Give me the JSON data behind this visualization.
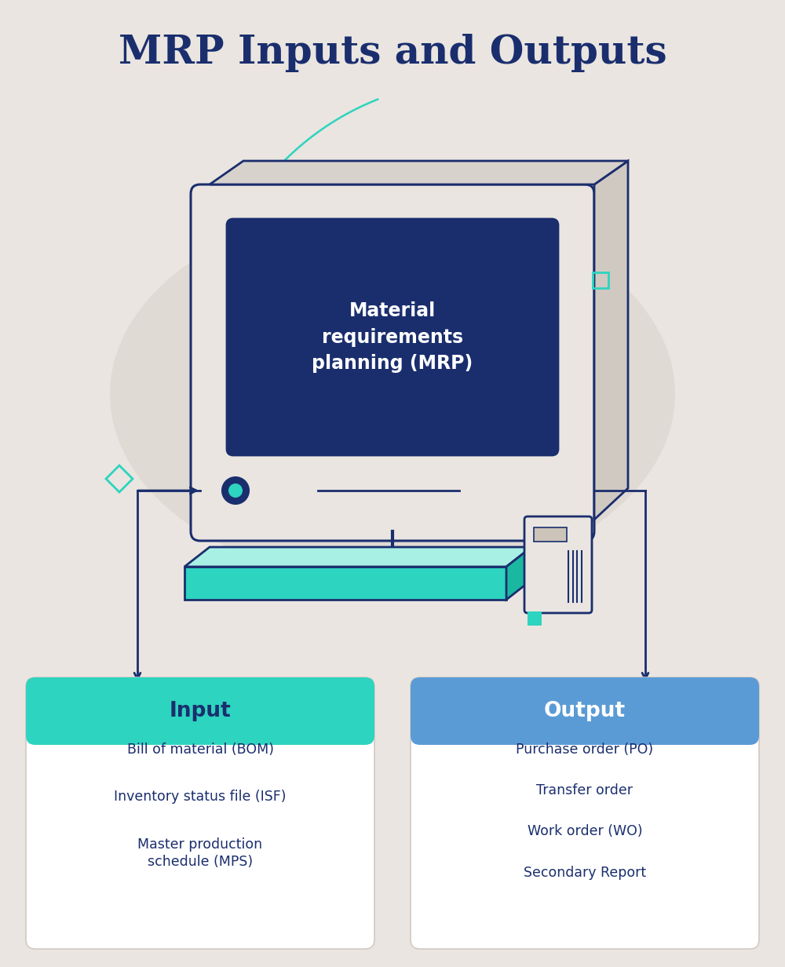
{
  "title": "MRP Inputs and Outputs",
  "title_color": "#1a2e6e",
  "title_fontsize": 36,
  "background_color": "#eae5e0",
  "monitor_body_color": "#eae5e0",
  "monitor_border_color": "#1a2e6e",
  "screen_color": "#1a2e6e",
  "screen_text": "Material\nrequirements\nplanning (MRP)",
  "screen_text_color": "#ffffff",
  "keyboard_color": "#2dd4bf",
  "keyboard_top_color": "#a8f0e4",
  "keyboard_right_color": "#1ab8a0",
  "input_header_color": "#2dd4bf",
  "input_header_text": "Input",
  "input_header_text_color": "#1a2e6e",
  "input_items": [
    "Bill of material (BOM)",
    "Inventory status file (ISF)",
    "Master production\nschedule (MPS)"
  ],
  "input_text_color": "#1a2e6e",
  "output_header_color": "#5b9bd5",
  "output_header_text": "Output",
  "output_header_text_color": "#ffffff",
  "output_items": [
    "Purchase order (PO)",
    "Transfer order",
    "Work order (WO)",
    "Secondary Report"
  ],
  "output_text_color": "#1a2e6e",
  "arrow_color": "#1a2e6e",
  "teal_accent": "#2dd4bf",
  "box_bg": "#ffffff",
  "dome_color": "#d8d2cc",
  "monitor_side_color": "#d0c9c1",
  "monitor_top_color": "#d8d2cc"
}
